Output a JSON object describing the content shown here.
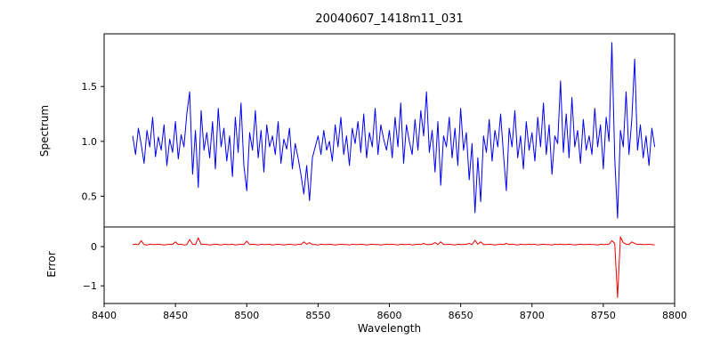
{
  "chart_data": {
    "type": "line",
    "title": "20040607_1418m11_031",
    "xlabel": "Wavelength",
    "grid": false,
    "legend": "none",
    "xlim": [
      8400,
      8800
    ],
    "xtick_values": [
      8400,
      8450,
      8500,
      8550,
      8600,
      8650,
      8700,
      8750,
      8800
    ],
    "xtick_labels": [
      "8400",
      "8450",
      "8500",
      "8550",
      "8600",
      "8650",
      "8700",
      "8750",
      "8800"
    ],
    "panels": [
      {
        "name": "spectrum",
        "ylabel": "Spectrum",
        "color": "#0000ee",
        "ylim": [
          0.22,
          1.98
        ],
        "ytick_values": [
          0.5,
          1.0,
          1.5
        ],
        "ytick_labels": [
          "0.5",
          "1.0",
          "1.5"
        ],
        "x_start": 8420,
        "x_step": 2,
        "y": [
          1.05,
          0.88,
          1.12,
          0.97,
          0.8,
          1.1,
          0.95,
          1.22,
          0.86,
          1.04,
          0.92,
          1.15,
          0.78,
          1.02,
          0.9,
          1.18,
          0.84,
          1.06,
          0.95,
          1.25,
          1.45,
          0.7,
          1.1,
          0.58,
          1.28,
          0.92,
          1.08,
          0.85,
          1.18,
          0.75,
          1.3,
          0.95,
          1.12,
          0.82,
          1.05,
          0.68,
          1.22,
          0.9,
          1.35,
          0.78,
          0.55,
          1.08,
          0.92,
          1.28,
          0.85,
          1.1,
          0.72,
          1.15,
          0.95,
          1.05,
          0.88,
          1.18,
          0.8,
          1.02,
          0.93,
          1.12,
          0.75,
          0.98,
          0.85,
          0.7,
          0.52,
          0.78,
          0.46,
          0.85,
          0.95,
          1.05,
          0.88,
          1.1,
          0.92,
          1.0,
          0.82,
          1.15,
          0.95,
          1.22,
          0.88,
          1.05,
          0.78,
          1.12,
          0.98,
          1.18,
          0.9,
          1.25,
          0.85,
          1.08,
          0.95,
          1.3,
          0.88,
          1.15,
          1.02,
          0.92,
          1.1,
          0.85,
          1.22,
          0.95,
          1.35,
          0.8,
          1.15,
          1.0,
          0.88,
          1.2,
          0.92,
          1.28,
          1.05,
          1.45,
          0.9,
          1.1,
          0.72,
          1.18,
          0.6,
          1.05,
          0.95,
          1.22,
          0.85,
          1.12,
          0.78,
          1.3,
          0.92,
          1.08,
          0.65,
          0.98,
          0.35,
          0.85,
          0.45,
          1.05,
          0.9,
          1.2,
          0.82,
          1.1,
          0.95,
          1.25,
          0.88,
          0.55,
          1.12,
          0.95,
          1.28,
          0.85,
          1.05,
          0.75,
          1.18,
          0.92,
          1.08,
          0.82,
          1.22,
          0.95,
          1.35,
          0.88,
          1.15,
          0.7,
          1.05,
          0.98,
          1.55,
          0.9,
          1.25,
          0.85,
          1.4,
          0.95,
          1.1,
          0.8,
          1.2,
          0.92,
          1.05,
          0.88,
          1.3,
          0.95,
          1.15,
          0.75,
          1.22,
          1.0,
          1.9,
          0.85,
          0.3,
          1.1,
          0.95,
          1.45,
          0.88,
          1.2,
          1.75,
          0.92,
          1.15,
          0.85,
          1.05,
          0.78,
          1.12,
          0.95
        ]
      },
      {
        "name": "error",
        "ylabel": "Error",
        "color": "#ee0000",
        "ylim": [
          -1.45,
          0.5
        ],
        "ytick_values": [
          -1,
          0
        ],
        "ytick_labels": [
          "−1",
          "0"
        ],
        "x_start": 8420,
        "x_step": 2,
        "y": [
          0.05,
          0.06,
          0.05,
          0.15,
          0.05,
          0.04,
          0.06,
          0.05,
          0.05,
          0.06,
          0.05,
          0.04,
          0.05,
          0.06,
          0.05,
          0.12,
          0.05,
          0.06,
          0.04,
          0.05,
          0.18,
          0.06,
          0.05,
          0.22,
          0.05,
          0.06,
          0.05,
          0.04,
          0.05,
          0.06,
          0.05,
          0.04,
          0.06,
          0.05,
          0.05,
          0.06,
          0.04,
          0.05,
          0.06,
          0.05,
          0.14,
          0.05,
          0.06,
          0.05,
          0.04,
          0.06,
          0.05,
          0.05,
          0.06,
          0.04,
          0.05,
          0.06,
          0.05,
          0.04,
          0.05,
          0.06,
          0.05,
          0.04,
          0.06,
          0.05,
          0.12,
          0.06,
          0.1,
          0.05,
          0.05,
          0.04,
          0.06,
          0.05,
          0.05,
          0.06,
          0.05,
          0.04,
          0.05,
          0.06,
          0.05,
          0.05,
          0.04,
          0.06,
          0.05,
          0.05,
          0.06,
          0.05,
          0.04,
          0.05,
          0.06,
          0.05,
          0.05,
          0.04,
          0.05,
          0.06,
          0.05,
          0.06,
          0.05,
          0.04,
          0.06,
          0.05,
          0.05,
          0.06,
          0.04,
          0.05,
          0.06,
          0.05,
          0.08,
          0.05,
          0.05,
          0.06,
          0.1,
          0.05,
          0.12,
          0.05,
          0.05,
          0.06,
          0.05,
          0.04,
          0.06,
          0.05,
          0.05,
          0.06,
          0.08,
          0.05,
          0.16,
          0.06,
          0.12,
          0.05,
          0.05,
          0.06,
          0.05,
          0.04,
          0.05,
          0.06,
          0.05,
          0.08,
          0.05,
          0.06,
          0.05,
          0.04,
          0.06,
          0.05,
          0.05,
          0.06,
          0.05,
          0.06,
          0.04,
          0.05,
          0.06,
          0.05,
          0.05,
          0.04,
          0.06,
          0.05,
          0.06,
          0.05,
          0.05,
          0.06,
          0.05,
          0.04,
          0.05,
          0.06,
          0.05,
          0.05,
          0.06,
          0.05,
          0.05,
          0.04,
          0.06,
          0.05,
          0.05,
          0.06,
          0.15,
          0.08,
          -1.3,
          0.25,
          0.1,
          0.06,
          0.05,
          0.12,
          0.08,
          0.05,
          0.06,
          0.05,
          0.05,
          0.06,
          0.05,
          0.04
        ]
      }
    ]
  }
}
